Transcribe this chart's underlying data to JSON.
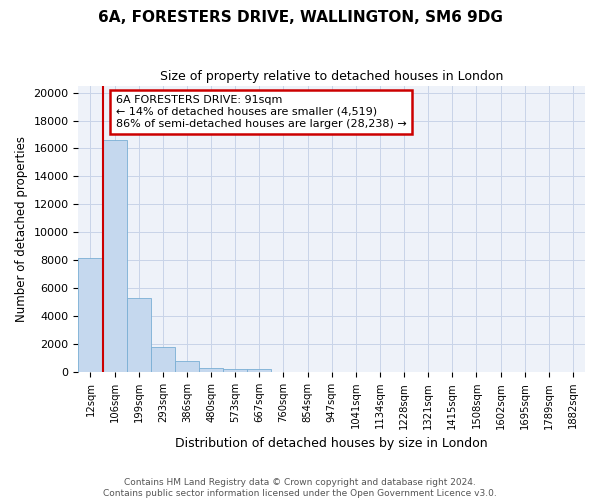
{
  "title1": "6A, FORESTERS DRIVE, WALLINGTON, SM6 9DG",
  "title2": "Size of property relative to detached houses in London",
  "xlabel": "Distribution of detached houses by size in London",
  "ylabel": "Number of detached properties",
  "bar_values": [
    8200,
    16600,
    5300,
    1800,
    800,
    300,
    200,
    200,
    0,
    0,
    0,
    0,
    0,
    0,
    0,
    0,
    0,
    0,
    0,
    0,
    0
  ],
  "bar_labels": [
    "12sqm",
    "106sqm",
    "199sqm",
    "293sqm",
    "386sqm",
    "480sqm",
    "573sqm",
    "667sqm",
    "760sqm",
    "854sqm",
    "947sqm",
    "1041sqm",
    "1134sqm",
    "1228sqm",
    "1321sqm",
    "1415sqm",
    "1508sqm",
    "1602sqm",
    "1695sqm",
    "1789sqm",
    "1882sqm"
  ],
  "bar_color": "#c5d8ee",
  "bar_edge_color": "#7aafd4",
  "grid_color": "#c8d4e8",
  "bg_color": "#eef2f9",
  "annotation_line1": "6A FORESTERS DRIVE: 91sqm",
  "annotation_line2": "← 14% of detached houses are smaller (4,519)",
  "annotation_line3": "86% of semi-detached houses are larger (28,238) →",
  "annotation_box_color": "#cc0000",
  "ylim": [
    0,
    20500
  ],
  "yticks": [
    0,
    2000,
    4000,
    6000,
    8000,
    10000,
    12000,
    14000,
    16000,
    18000,
    20000
  ],
  "footer_line1": "Contains HM Land Registry data © Crown copyright and database right 2024.",
  "footer_line2": "Contains public sector information licensed under the Open Government Licence v3.0."
}
